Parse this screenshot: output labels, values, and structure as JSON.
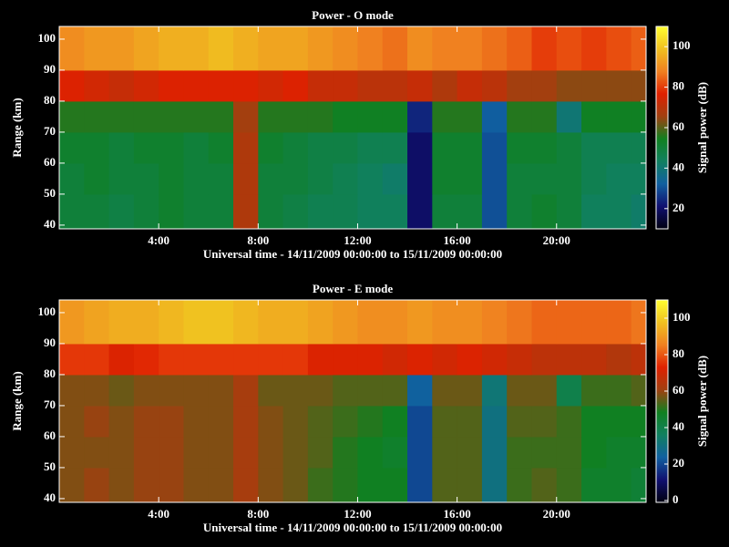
{
  "chart_data": [
    {
      "type": "heatmap",
      "title": "Power - O mode",
      "xlabel": "Universal time - 14/11/2009 00:00:00 to 15/11/2009 00:00:00",
      "ylabel": "Range (km)",
      "colorbar_label": "Signal power (dB)",
      "x": [
        0,
        1,
        2,
        3,
        4,
        5,
        6,
        7,
        8,
        9,
        10,
        11,
        12,
        13,
        14,
        15,
        16,
        17,
        18,
        19,
        20,
        21,
        22,
        23
      ],
      "xlim": [
        0,
        23.6
      ],
      "xticks": [
        {
          "value": 4,
          "label": "4:00"
        },
        {
          "value": 8,
          "label": "8:00"
        },
        {
          "value": 12,
          "label": "12:00"
        },
        {
          "value": 16,
          "label": "16:00"
        },
        {
          "value": 20,
          "label": "20:00"
        }
      ],
      "y_bins": [
        39,
        50,
        60,
        70,
        80,
        90,
        104
      ],
      "ylim": [
        38.8,
        104.1
      ],
      "yticks": [
        40,
        50,
        60,
        70,
        80,
        90,
        100
      ],
      "values": [
        [
          50,
          50,
          48,
          50,
          52,
          50,
          50,
          68,
          50,
          48,
          46,
          46,
          44,
          44,
          20,
          50,
          50,
          30,
          50,
          52,
          50,
          44,
          44,
          42
        ],
        [
          50,
          52,
          50,
          50,
          52,
          50,
          50,
          68,
          50,
          50,
          48,
          46,
          44,
          42,
          20,
          52,
          52,
          30,
          50,
          50,
          50,
          46,
          44,
          44
        ],
        [
          52,
          52,
          50,
          52,
          52,
          50,
          52,
          68,
          52,
          50,
          48,
          48,
          46,
          46,
          20,
          52,
          52,
          30,
          52,
          52,
          50,
          46,
          46,
          46
        ],
        [
          56,
          56,
          56,
          56,
          56,
          56,
          56,
          66,
          56,
          56,
          56,
          54,
          54,
          54,
          24,
          56,
          56,
          32,
          56,
          56,
          40,
          54,
          54,
          54
        ],
        [
          76,
          74,
          72,
          74,
          76,
          76,
          76,
          76,
          74,
          76,
          72,
          72,
          70,
          70,
          72,
          68,
          72,
          70,
          66,
          66,
          64,
          64,
          64,
          64
        ],
        [
          90,
          92,
          92,
          94,
          96,
          96,
          98,
          96,
          94,
          94,
          92,
          90,
          88,
          86,
          90,
          88,
          88,
          86,
          84,
          80,
          82,
          80,
          82,
          84
        ]
      ],
      "clim": [
        10,
        110
      ],
      "cticks": [
        20,
        40,
        60,
        80,
        100
      ],
      "colormap": [
        "#000010",
        "#101070",
        "#1060a0",
        "#108060",
        "#108020",
        "#a04010",
        "#e02000",
        "#f08020",
        "#f0c020",
        "#ffff30"
      ]
    },
    {
      "type": "heatmap",
      "title": "Power - E mode",
      "xlabel": "Universal time - 14/11/2009 00:00:00 to 15/11/2009 00:00:00",
      "ylabel": "Range (km)",
      "colorbar_label": "Signal power (dB)",
      "x": [
        0,
        1,
        2,
        3,
        4,
        5,
        6,
        7,
        8,
        9,
        10,
        11,
        12,
        13,
        14,
        15,
        16,
        17,
        18,
        19,
        20,
        21,
        22,
        23
      ],
      "xlim": [
        0,
        23.6
      ],
      "xticks": [
        {
          "value": 4,
          "label": "4:00"
        },
        {
          "value": 8,
          "label": "8:00"
        },
        {
          "value": 12,
          "label": "12:00"
        },
        {
          "value": 16,
          "label": "16:00"
        },
        {
          "value": 20,
          "label": "20:00"
        }
      ],
      "y_bins": [
        39,
        50,
        60,
        70,
        80,
        90,
        104
      ],
      "ylim": [
        38.8,
        104.1
      ],
      "yticks": [
        40,
        50,
        60,
        70,
        80,
        90,
        100
      ],
      "values": [
        [
          58,
          60,
          58,
          60,
          60,
          58,
          58,
          62,
          58,
          56,
          52,
          50,
          48,
          48,
          20,
          54,
          54,
          30,
          52,
          54,
          52,
          46,
          46,
          44
        ],
        [
          58,
          58,
          58,
          60,
          60,
          58,
          58,
          62,
          58,
          56,
          54,
          50,
          48,
          46,
          20,
          54,
          54,
          30,
          52,
          52,
          52,
          48,
          46,
          46
        ],
        [
          58,
          60,
          58,
          60,
          60,
          58,
          58,
          62,
          58,
          56,
          54,
          52,
          50,
          48,
          20,
          54,
          54,
          30,
          54,
          54,
          52,
          48,
          48,
          48
        ],
        [
          58,
          58,
          56,
          58,
          58,
          58,
          58,
          62,
          56,
          56,
          56,
          54,
          54,
          54,
          24,
          56,
          56,
          32,
          56,
          56,
          40,
          52,
          52,
          54
        ],
        [
          76,
          76,
          72,
          74,
          76,
          76,
          76,
          76,
          76,
          76,
          72,
          72,
          72,
          70,
          72,
          70,
          72,
          70,
          68,
          66,
          66,
          66,
          64,
          66
        ],
        [
          90,
          92,
          94,
          94,
          96,
          98,
          98,
          96,
          94,
          94,
          92,
          90,
          88,
          88,
          90,
          88,
          88,
          86,
          84,
          82,
          82,
          82,
          82,
          84
        ]
      ],
      "clim": [
        -1,
        110
      ],
      "cticks": [
        0,
        20,
        40,
        60,
        80,
        100
      ],
      "colormap": [
        "#000010",
        "#101070",
        "#1060a0",
        "#108060",
        "#108020",
        "#a04010",
        "#e02000",
        "#f08020",
        "#f0c020",
        "#ffff30"
      ]
    }
  ]
}
